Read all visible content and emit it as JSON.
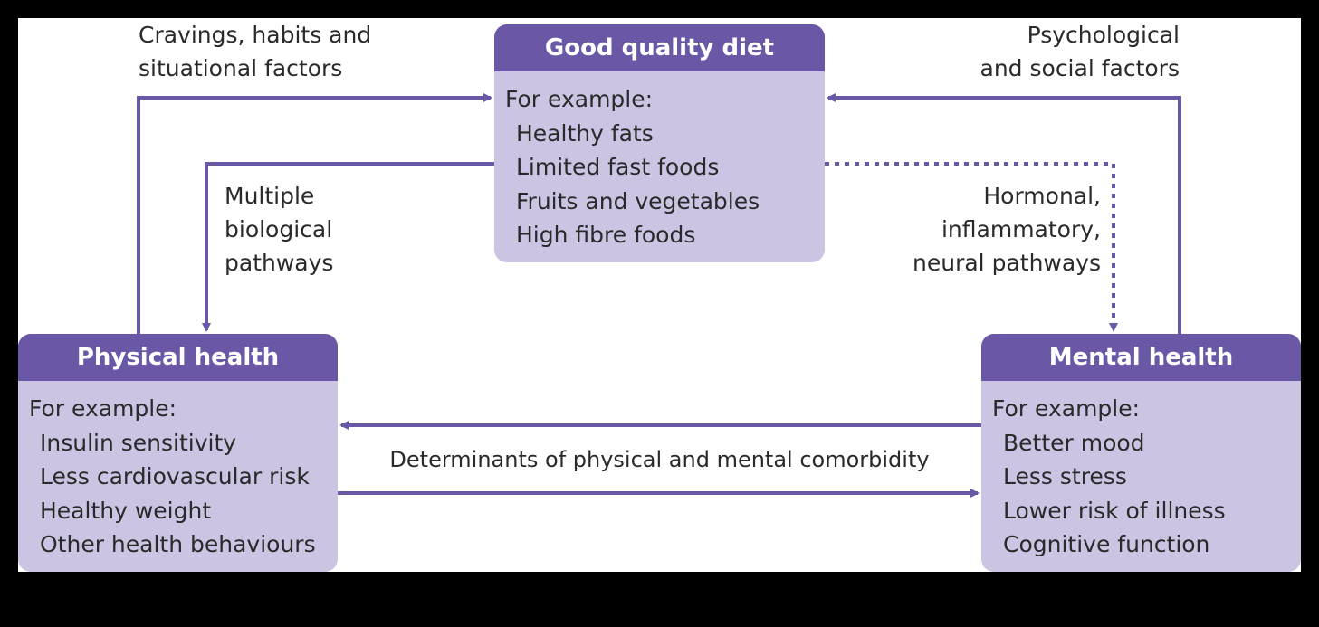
{
  "colors": {
    "header": "#6a57a5",
    "body": "#cbc4e3",
    "line": "#6a57a5"
  },
  "diet": {
    "title": "Good quality diet",
    "intro": "For example:",
    "items": [
      "Healthy fats",
      "Limited fast foods",
      "Fruits and vegetables",
      "High fibre foods"
    ]
  },
  "physical": {
    "title": "Physical health",
    "intro": "For example:",
    "items": [
      "Insulin sensitivity",
      "Less cardiovascular risk",
      "Healthy weight",
      "Other health behaviours"
    ]
  },
  "mental": {
    "title": "Mental health",
    "intro": "For example:",
    "items": [
      "Better mood",
      "Less stress",
      "Lower risk of illness",
      "Cognitive function"
    ]
  },
  "labels": {
    "cravings": [
      "Cravings, habits and",
      "situational factors"
    ],
    "psych": [
      "Psychological",
      "and social factors"
    ],
    "biological": [
      "Multiple",
      "biological",
      "pathways"
    ],
    "hormonal": [
      "Hormonal,",
      "inflammatory,",
      "neural pathways"
    ],
    "comorbidity": "Determinants of physical and mental comorbidity"
  }
}
